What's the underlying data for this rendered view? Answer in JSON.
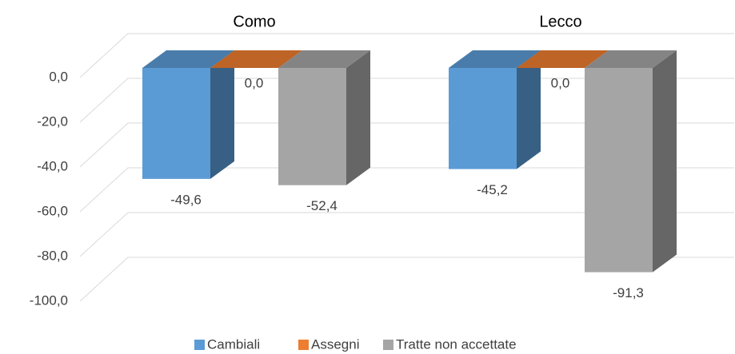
{
  "chart_data": {
    "type": "bar3d",
    "categories": [
      "Como",
      "Lecco"
    ],
    "series": [
      {
        "name": "Cambiali",
        "color": "#5b9bd5",
        "values": [
          -49.6,
          -45.2
        ],
        "value_labels": [
          "-49,6",
          "-45,2"
        ]
      },
      {
        "name": "Assegni",
        "color": "#ed7d31",
        "values": [
          0.0,
          0.0
        ],
        "value_labels": [
          "0,0",
          "0,0"
        ]
      },
      {
        "name": "Tratte non accettate",
        "color": "#a5a5a5",
        "values": [
          -52.4,
          -91.3
        ],
        "value_labels": [
          "-52,4",
          "-91,3"
        ]
      }
    ],
    "ylim": [
      -100,
      0
    ],
    "yticks": [
      {
        "value": 0,
        "label": "0,0"
      },
      {
        "value": -20,
        "label": "-20,0"
      },
      {
        "value": -40,
        "label": "-40,0"
      },
      {
        "value": -60,
        "label": "-60,0"
      },
      {
        "value": -80,
        "label": "-80,0"
      },
      {
        "value": -100,
        "label": "-100,0"
      }
    ],
    "grid": true,
    "legend": "bottom"
  }
}
